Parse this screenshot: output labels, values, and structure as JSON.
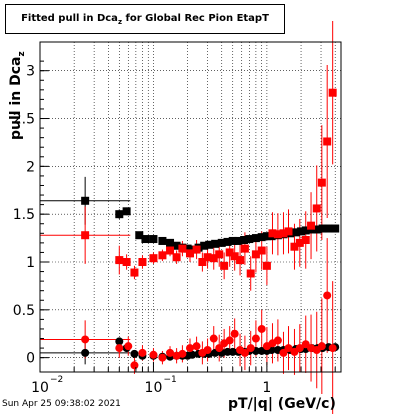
{
  "title_main": "Fitted pull in Dca",
  "title_sub": "z",
  "title_rest": " for Global Rec Pion EtapT",
  "ylabel": "pull in Dca",
  "ylabel_sub": "z",
  "xlabel": "pT/|q| (GeV/c)",
  "timestamp": "Sun Apr 25 09:38:02 2021",
  "colors": {
    "black": "#000000",
    "red": "#ff0000",
    "grid": "#000000"
  },
  "chart_data": {
    "type": "scatter",
    "title": "Fitted pull in Dcaz for Global Rec Pion EtapT",
    "xlabel": "pT/|q| (GeV/c)",
    "ylabel": "pull in Dcaz",
    "xscale": "log",
    "xlim": [
      0.01,
      4.5
    ],
    "ylim": [
      -0.15,
      3.3
    ],
    "grid": true,
    "xticks": [
      {
        "v": 0.01,
        "label": "10"
      },
      {
        "v": 0.1,
        "label": "10"
      },
      {
        "v": 1,
        "label": "1"
      }
    ],
    "xtick_exp": "−2|−1",
    "yticks": [
      "0",
      "0.5",
      "1",
      "1.5",
      "2",
      "2.5",
      "3"
    ],
    "series": [
      {
        "color": "#000000",
        "marker": "square",
        "x": [
          0.025,
          0.05,
          0.058,
          0.075,
          0.085,
          0.1,
          0.12,
          0.14,
          0.16,
          0.18,
          0.2,
          0.22,
          0.25,
          0.28,
          0.31,
          0.35,
          0.4,
          0.45,
          0.5,
          0.56,
          0.63,
          0.7,
          0.8,
          0.9,
          1.0,
          1.1,
          1.25,
          1.4,
          1.6,
          1.8,
          2.0,
          2.2,
          2.5,
          2.8,
          3.1,
          3.5,
          4.0
        ],
        "y": [
          1.64,
          1.5,
          1.53,
          1.28,
          1.24,
          1.24,
          1.22,
          1.2,
          1.17,
          1.15,
          1.14,
          1.13,
          1.15,
          1.17,
          1.18,
          1.19,
          1.2,
          1.21,
          1.22,
          1.22,
          1.23,
          1.24,
          1.25,
          1.26,
          1.27,
          1.27,
          1.28,
          1.29,
          1.3,
          1.31,
          1.32,
          1.33,
          1.34,
          1.34,
          1.35,
          1.35,
          1.35
        ],
        "yerr": [
          0.25,
          0.05,
          0.04,
          0.03,
          0.02,
          0.02,
          0.02,
          0.02,
          0.02,
          0.02,
          0.02,
          0.02,
          0.02,
          0.02,
          0.02,
          0.02,
          0.02,
          0.02,
          0.02,
          0.02,
          0.02,
          0.02,
          0.02,
          0.02,
          0.02,
          0.02,
          0.02,
          0.02,
          0.02,
          0.02,
          0.02,
          0.02,
          0.02,
          0.02,
          0.02,
          0.02,
          0.02
        ]
      },
      {
        "color": "#ff0000",
        "marker": "square",
        "x": [
          0.025,
          0.05,
          0.058,
          0.068,
          0.08,
          0.1,
          0.12,
          0.14,
          0.16,
          0.18,
          0.21,
          0.24,
          0.27,
          0.3,
          0.34,
          0.38,
          0.42,
          0.47,
          0.52,
          0.58,
          0.64,
          0.72,
          0.8,
          0.9,
          1.0,
          1.12,
          1.25,
          1.4,
          1.55,
          1.75,
          1.95,
          2.2,
          2.45,
          2.75,
          3.05,
          3.4,
          3.8
        ],
        "y": [
          1.28,
          1.02,
          1.0,
          0.89,
          1.0,
          1.04,
          1.07,
          1.12,
          1.05,
          1.14,
          1.09,
          1.13,
          1.0,
          1.05,
          1.04,
          1.08,
          0.96,
          1.1,
          1.06,
          1.02,
          1.14,
          0.88,
          1.08,
          1.12,
          0.96,
          1.3,
          1.29,
          1.3,
          1.32,
          1.16,
          1.2,
          1.23,
          1.38,
          1.56,
          1.83,
          2.26,
          2.77
        ],
        "yerr": [
          0.3,
          0.15,
          0.08,
          0.07,
          0.07,
          0.06,
          0.06,
          0.06,
          0.07,
          0.08,
          0.09,
          0.1,
          0.1,
          0.12,
          0.12,
          0.13,
          0.14,
          0.15,
          0.15,
          0.16,
          0.17,
          0.18,
          0.19,
          0.2,
          0.2,
          0.22,
          0.22,
          0.22,
          0.23,
          0.24,
          0.25,
          0.3,
          0.35,
          0.45,
          0.6,
          0.8,
          0.75
        ]
      },
      {
        "color": "#000000",
        "marker": "circle",
        "x": [
          0.025,
          0.05,
          0.058,
          0.068,
          0.08,
          0.1,
          0.12,
          0.14,
          0.16,
          0.18,
          0.2,
          0.22,
          0.25,
          0.28,
          0.31,
          0.35,
          0.4,
          0.45,
          0.5,
          0.56,
          0.63,
          0.7,
          0.8,
          0.9,
          1.0,
          1.1,
          1.25,
          1.4,
          1.6,
          1.8,
          2.0,
          2.2,
          2.5,
          2.8,
          3.1,
          3.5,
          4.0
        ],
        "y": [
          0.05,
          0.17,
          0.1,
          0.04,
          0.02,
          0.02,
          0.01,
          0.01,
          0.02,
          0.02,
          0.02,
          0.03,
          0.04,
          0.04,
          0.04,
          0.05,
          0.05,
          0.06,
          0.06,
          0.06,
          0.06,
          0.07,
          0.07,
          0.07,
          0.07,
          0.08,
          0.08,
          0.08,
          0.08,
          0.09,
          0.09,
          0.09,
          0.1,
          0.1,
          0.1,
          0.11,
          0.11
        ],
        "yerr": [
          0.12,
          0.04,
          0.03,
          0.02,
          0.02,
          0.01,
          0.01,
          0.01,
          0.01,
          0.01,
          0.01,
          0.01,
          0.01,
          0.01,
          0.01,
          0.01,
          0.01,
          0.01,
          0.01,
          0.01,
          0.01,
          0.01,
          0.01,
          0.01,
          0.01,
          0.01,
          0.01,
          0.01,
          0.01,
          0.01,
          0.01,
          0.01,
          0.01,
          0.01,
          0.01,
          0.01,
          0.01
        ]
      },
      {
        "color": "#ff0000",
        "marker": "circle",
        "x": [
          0.025,
          0.05,
          0.06,
          0.068,
          0.08,
          0.1,
          0.12,
          0.14,
          0.16,
          0.18,
          0.21,
          0.24,
          0.27,
          0.3,
          0.34,
          0.38,
          0.42,
          0.47,
          0.52,
          0.58,
          0.64,
          0.72,
          0.8,
          0.9,
          1.0,
          1.12,
          1.25,
          1.4,
          1.55,
          1.75,
          1.95,
          2.2,
          2.45,
          2.75,
          3.05,
          3.4,
          3.8
        ],
        "y": [
          0.19,
          0.1,
          0.12,
          -0.08,
          0.05,
          0.03,
          0.0,
          0.05,
          0.02,
          0.04,
          0.1,
          0.12,
          0.05,
          0.08,
          0.2,
          0.1,
          0.15,
          0.18,
          0.25,
          0.08,
          0.05,
          0.1,
          0.2,
          0.3,
          0.12,
          0.15,
          0.18,
          0.05,
          0.1,
          0.06,
          0.1,
          0.14,
          0.1,
          0.08,
          0.12,
          0.65,
          0.1
        ],
        "yerr": [
          0.2,
          0.1,
          0.1,
          0.09,
          0.08,
          0.07,
          0.07,
          0.07,
          0.08,
          0.09,
          0.1,
          0.1,
          0.12,
          0.12,
          0.13,
          0.14,
          0.15,
          0.15,
          0.16,
          0.17,
          0.18,
          0.18,
          0.19,
          0.2,
          0.2,
          0.21,
          0.22,
          0.22,
          0.23,
          0.24,
          0.25,
          0.3,
          0.35,
          0.4,
          0.5,
          0.6,
          0.7
        ]
      }
    ]
  }
}
